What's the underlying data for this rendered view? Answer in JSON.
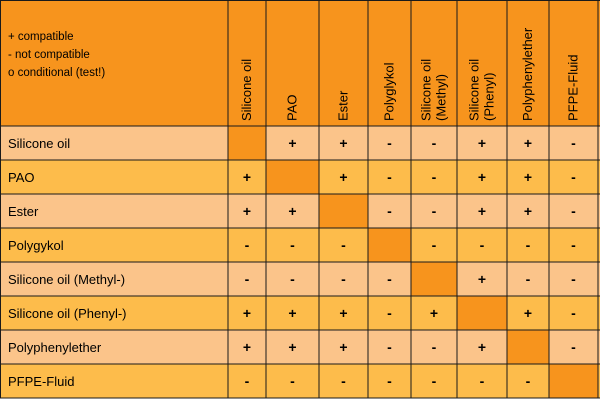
{
  "colors": {
    "header_bg": "#f7941d",
    "row_light": "#fbc48a",
    "row_dark": "#fdbc4b",
    "diagonal": "#f7941d",
    "grid": "#1a1a1a"
  },
  "legend": [
    "+ compatible",
    "-  not compatible",
    "o conditional (test!)"
  ],
  "columns": [
    {
      "lines": [
        "Silicone oil"
      ]
    },
    {
      "lines": [
        "PAO"
      ]
    },
    {
      "lines": [
        "Ester"
      ]
    },
    {
      "lines": [
        "Polyglykol"
      ]
    },
    {
      "lines": [
        "Silicone oil",
        "(Methyl)"
      ]
    },
    {
      "lines": [
        "Silicone oil",
        "(Phenyl)"
      ]
    },
    {
      "lines": [
        "Polyphenylether"
      ]
    },
    {
      "lines": [
        "PFPE-Fluid"
      ]
    }
  ],
  "rows": [
    {
      "label": "Silicone oil",
      "cells": [
        "",
        "+",
        "+",
        "-",
        "-",
        "+",
        "+",
        "-"
      ]
    },
    {
      "label": "PAO",
      "cells": [
        "+",
        "",
        "+",
        "-",
        "-",
        "+",
        "+",
        "-"
      ]
    },
    {
      "label": "Ester",
      "cells": [
        "+",
        "+",
        "",
        "-",
        "-",
        "+",
        "+",
        "-"
      ]
    },
    {
      "label": "Polygykol",
      "cells": [
        "-",
        "-",
        "-",
        "",
        "-",
        "-",
        "-",
        "-"
      ]
    },
    {
      "label": "Silicone oil (Methyl-)",
      "cells": [
        "-",
        "-",
        "-",
        "-",
        "",
        "+",
        "-",
        "-"
      ]
    },
    {
      "label": "Silicone oil (Phenyl-)",
      "cells": [
        "+",
        "+",
        "+",
        "-",
        "+",
        "",
        "+",
        "-"
      ]
    },
    {
      "label": "Polyphenylether",
      "cells": [
        "+",
        "+",
        "+",
        "-",
        "-",
        "+",
        "",
        "-"
      ]
    },
    {
      "label": "PFPE-Fluid",
      "cells": [
        "-",
        "-",
        "-",
        "-",
        "-",
        "-",
        "-",
        ""
      ]
    }
  ]
}
